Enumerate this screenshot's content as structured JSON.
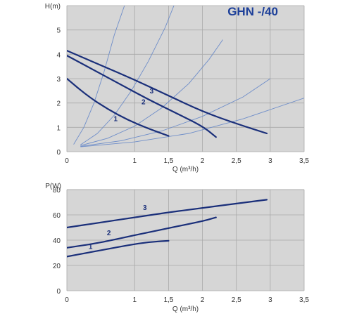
{
  "colors": {
    "plot_bg": "#d6d6d6",
    "grid": "#a9a9a9",
    "pump_curve": "#1a2f7a",
    "system_curve": "#6f8ec9",
    "title": "#1c3f99"
  },
  "chart_data": [
    {
      "type": "line",
      "title": "GHN -/40",
      "xlabel": "Q (m³/h)",
      "ylabel": "H(m)",
      "xlim": [
        0,
        3.5
      ],
      "ylim": [
        0,
        6
      ],
      "x_ticks": [
        "0",
        "1",
        "1,5",
        "2",
        "2,5",
        "3",
        "3,5"
      ],
      "x_tick_values": [
        0,
        1,
        1.5,
        2,
        2.5,
        3,
        3.5
      ],
      "y_ticks": [
        "0",
        "1",
        "2",
        "3",
        "4",
        "5"
      ],
      "y_tick_values": [
        0,
        1,
        2,
        3,
        4,
        5
      ],
      "grid": true,
      "series": [
        {
          "name": "1",
          "x": [
            0,
            0.3,
            0.6,
            0.9,
            1.2,
            1.5
          ],
          "y": [
            3.0,
            2.3,
            1.75,
            1.3,
            0.95,
            0.65
          ]
        },
        {
          "name": "2",
          "x": [
            0,
            0.4,
            0.8,
            1.2,
            1.6,
            2.0,
            2.2
          ],
          "y": [
            3.95,
            3.35,
            2.75,
            2.15,
            1.6,
            1.05,
            0.6
          ]
        },
        {
          "name": "3",
          "x": [
            0,
            0.5,
            1.0,
            1.5,
            2.0,
            2.5,
            2.95
          ],
          "y": [
            4.15,
            3.55,
            2.95,
            2.3,
            1.65,
            1.15,
            0.75
          ]
        }
      ],
      "curve_labels": [
        {
          "text": "1",
          "x": 0.72,
          "y": 1.25
        },
        {
          "text": "2",
          "x": 1.13,
          "y": 1.95
        },
        {
          "text": "3",
          "x": 1.25,
          "y": 2.4
        }
      ],
      "system_curves": [
        {
          "x": [
            0.1,
            0.25,
            0.4,
            0.55,
            0.7,
            0.85,
            1.0
          ],
          "y": [
            0.3,
            1.0,
            2.0,
            3.3,
            4.8,
            6.0,
            6.5
          ]
        },
        {
          "x": [
            0.2,
            0.45,
            0.7,
            0.95,
            1.2,
            1.45,
            1.65
          ],
          "y": [
            0.28,
            0.75,
            1.5,
            2.5,
            3.7,
            5.1,
            6.5
          ]
        },
        {
          "x": [
            0.2,
            0.6,
            1.0,
            1.4,
            1.8,
            2.1,
            2.3
          ],
          "y": [
            0.25,
            0.55,
            1.05,
            1.8,
            2.8,
            3.8,
            4.6
          ]
        },
        {
          "x": [
            0.2,
            0.8,
            1.4,
            2.0,
            2.6,
            3.0
          ],
          "y": [
            0.22,
            0.45,
            0.85,
            1.45,
            2.25,
            3.0
          ]
        },
        {
          "x": [
            0.2,
            1.0,
            1.8,
            2.6,
            3.5
          ],
          "y": [
            0.2,
            0.4,
            0.75,
            1.35,
            2.2
          ]
        }
      ]
    },
    {
      "type": "line",
      "xlabel": "Q (m³/h)",
      "ylabel": "P(W)",
      "xlim": [
        0,
        3.5
      ],
      "ylim": [
        0,
        80
      ],
      "x_ticks": [
        "0",
        "1",
        "1,5",
        "2",
        "2,5",
        "3",
        "3,5"
      ],
      "x_tick_values": [
        0,
        1,
        1.5,
        2,
        2.5,
        3,
        3.5
      ],
      "y_ticks": [
        "0",
        "20",
        "40",
        "60",
        "80"
      ],
      "y_tick_values": [
        0,
        20,
        40,
        60,
        80
      ],
      "grid": true,
      "series": [
        {
          "name": "1",
          "x": [
            0,
            0.3,
            0.6,
            0.9,
            1.2,
            1.5
          ],
          "y": [
            27,
            30,
            33,
            36,
            38.5,
            39.5
          ]
        },
        {
          "name": "2",
          "x": [
            0,
            0.5,
            1.0,
            1.5,
            2.0,
            2.2
          ],
          "y": [
            34,
            38,
            44,
            49.5,
            55,
            58
          ]
        },
        {
          "name": "3",
          "x": [
            0,
            0.5,
            1.0,
            1.5,
            2.0,
            2.5,
            2.95
          ],
          "y": [
            50,
            54,
            58,
            62,
            65.5,
            69,
            72
          ]
        }
      ],
      "curve_labels": [
        {
          "text": "1",
          "x": 0.35,
          "y": 33
        },
        {
          "text": "2",
          "x": 0.62,
          "y": 44
        },
        {
          "text": "3",
          "x": 1.15,
          "y": 64
        }
      ]
    }
  ]
}
